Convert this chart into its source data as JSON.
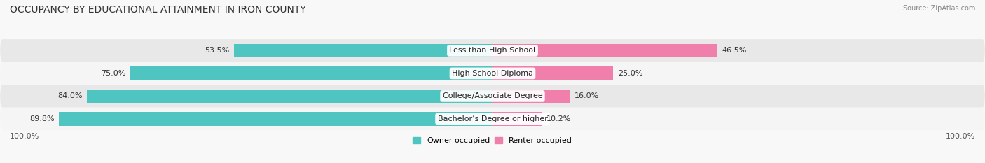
{
  "title": "OCCUPANCY BY EDUCATIONAL ATTAINMENT IN IRON COUNTY",
  "source": "Source: ZipAtlas.com",
  "categories": [
    "Less than High School",
    "High School Diploma",
    "College/Associate Degree",
    "Bachelor’s Degree or higher"
  ],
  "owner_pct": [
    53.5,
    75.0,
    84.0,
    89.8
  ],
  "renter_pct": [
    46.5,
    25.0,
    16.0,
    10.2
  ],
  "owner_color": "#4EC5C1",
  "renter_color": "#F07FAC",
  "row_colors_alt": [
    "#E8E8E8",
    "#F5F5F5"
  ],
  "title_fontsize": 10,
  "label_fontsize": 8,
  "value_fontsize": 8,
  "legend_fontsize": 8,
  "source_fontsize": 7,
  "left_axis_label": "100.0%",
  "right_axis_label": "100.0%",
  "bar_height": 0.6,
  "figsize": [
    14.06,
    2.33
  ],
  "dpi": 100
}
